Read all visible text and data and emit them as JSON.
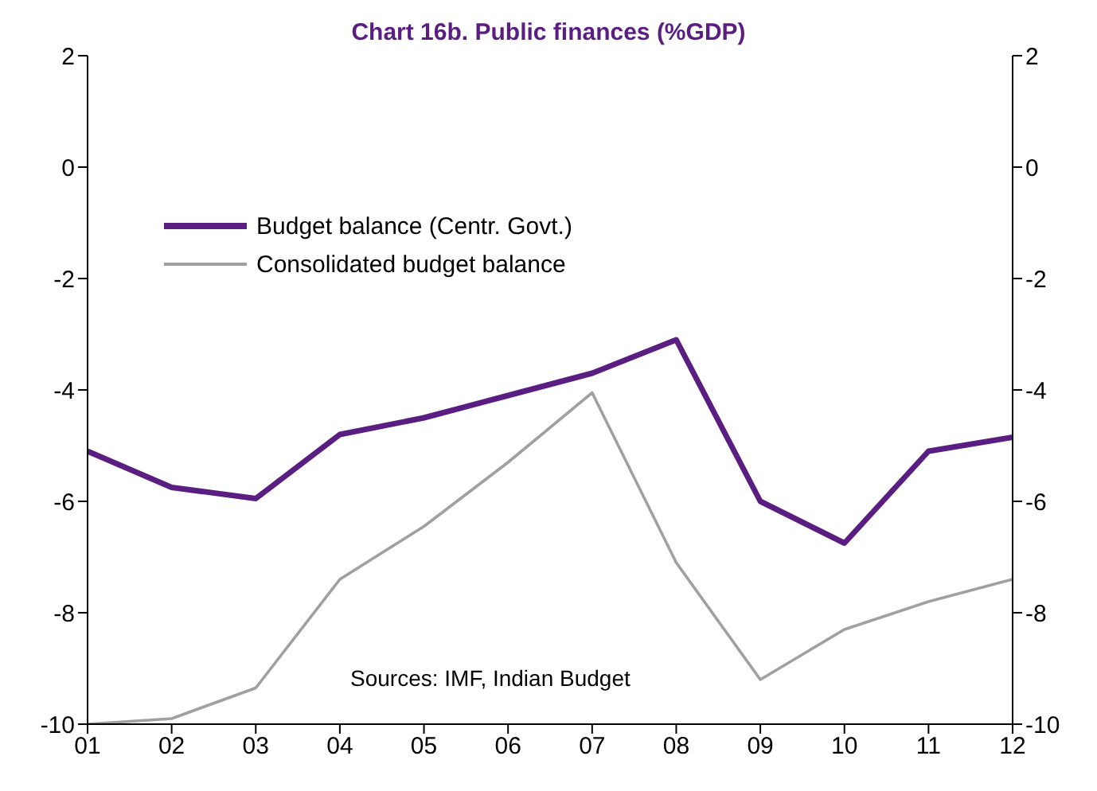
{
  "chart_data": {
    "type": "line",
    "title": "Chart 16b. Public finances (%GDP)",
    "categories": [
      "01",
      "02",
      "03",
      "04",
      "05",
      "06",
      "07",
      "08",
      "09",
      "10",
      "11",
      "12"
    ],
    "series": [
      {
        "name": "Budget balance (Centr. Govt.)",
        "color": "#5a1e82",
        "values": [
          -5.1,
          -5.75,
          -5.95,
          -4.8,
          -4.5,
          -4.1,
          -3.7,
          -3.1,
          -6.0,
          -6.75,
          -5.1,
          -4.85
        ]
      },
      {
        "name": "Consolidated budget balance",
        "color": "#a0a0a0",
        "values": [
          -10.0,
          -9.9,
          -9.35,
          -7.4,
          -6.45,
          -5.3,
          -4.05,
          -7.1,
          -9.2,
          -8.3,
          -7.8,
          -7.4
        ]
      }
    ],
    "ylim": [
      -10,
      2
    ],
    "yticks": [
      -10,
      -8,
      -6,
      -4,
      -2,
      0,
      2
    ],
    "y2lim": [
      -10,
      2
    ],
    "y2ticks": [
      -10,
      -8,
      -6,
      -4,
      -2,
      0,
      2
    ],
    "grid": false,
    "legend": "top left",
    "marker": "none",
    "line_style": "solid",
    "annotations": [
      "Sources: IMF, Indian Budget"
    ]
  }
}
